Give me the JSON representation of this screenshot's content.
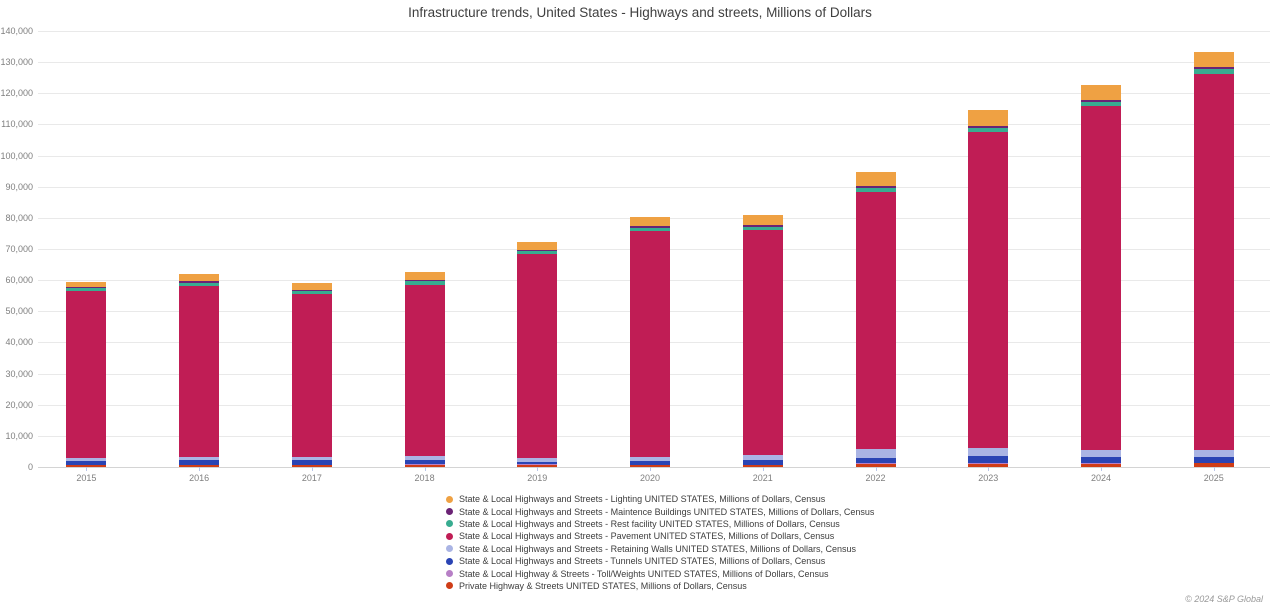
{
  "title": "Infrastructure trends, United States - Highways and streets, Millions of Dollars",
  "copyright": "© 2024 S&P Global",
  "chart_data": {
    "type": "bar",
    "stacked": true,
    "title": "Infrastructure trends, United States - Highways and streets, Millions of Dollars",
    "xlabel": "",
    "ylabel": "Millions of Dollars",
    "ylim": [
      0,
      140000
    ],
    "y_tick_step": 10000,
    "grid": true,
    "legend_position": "bottom",
    "categories": [
      "2015",
      "2016",
      "2017",
      "2018",
      "2019",
      "2020",
      "2021",
      "2022",
      "2023",
      "2024",
      "2025"
    ],
    "series": [
      {
        "key": "lighting",
        "label": "State & Local Highways and Streets - Lighting UNITED STATES, Millions of Dollars, Census",
        "color": "#efa143",
        "values": [
          1800,
          2500,
          2200,
          2400,
          2600,
          2900,
          3200,
          4500,
          5100,
          4800,
          4800
        ]
      },
      {
        "key": "maintence-buildings",
        "label": "State & Local Highways and Streets - Maintence Buildings UNITED STATES, Millions of Dollars, Census",
        "color": "#6b2375",
        "values": [
          300,
          400,
          300,
          500,
          300,
          600,
          700,
          600,
          650,
          650,
          650
        ]
      },
      {
        "key": "rest-facility",
        "label": "State & Local Highways and Streets - Rest facility UNITED STATES, Millions of Dollars, Census",
        "color": "#38ac90",
        "values": [
          1000,
          1100,
          900,
          1000,
          1000,
          1000,
          1000,
          1300,
          1300,
          1400,
          1900
        ]
      },
      {
        "key": "pavement",
        "label": "State & Local Highways and Streets - Pavement UNITED STATES, Millions of Dollars, Census",
        "color": "#c01d55",
        "values": [
          53400,
          54900,
          52500,
          55200,
          65300,
          72500,
          72100,
          82600,
          101300,
          110300,
          120500
        ]
      },
      {
        "key": "retaining-walls",
        "label": "State & Local Highways and Streets - Retaining Walls UNITED STATES, Millions of Dollars, Census",
        "color": "#aab4e4",
        "values": [
          1000,
          1000,
          1000,
          1100,
          1300,
          1400,
          1800,
          2600,
          2600,
          2200,
          2200
        ]
      },
      {
        "key": "tunnels",
        "label": "State & Local Highways and Streets - Tunnels UNITED STATES, Millions of Dollars, Census",
        "color": "#2a44b4",
        "values": [
          1300,
          1400,
          1400,
          1400,
          800,
          1000,
          1400,
          1900,
          2400,
          2200,
          1900
        ]
      },
      {
        "key": "toll-weights",
        "label": "State & Local Highway & Streets - Toll/Weights UNITED STATES, Millions of Dollars, Census",
        "color": "#b77fc6",
        "values": [
          100,
          100,
          100,
          100,
          100,
          100,
          100,
          150,
          150,
          150,
          150
        ]
      },
      {
        "key": "private",
        "label": "Private Highway & Streets UNITED STATES, Millions of Dollars, Census",
        "color": "#cf3d17",
        "values": [
          600,
          700,
          700,
          800,
          800,
          700,
          700,
          1000,
          1100,
          1000,
          1300
        ]
      }
    ]
  }
}
